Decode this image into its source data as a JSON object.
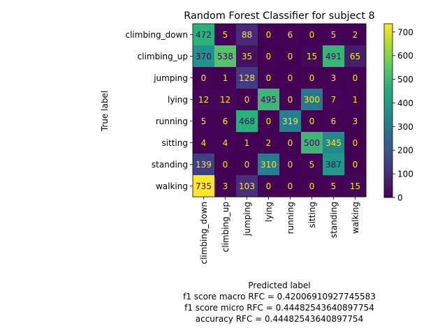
{
  "chart_data": {
    "type": "heatmap",
    "title": "Random Forest Classifier for subject 8",
    "xlabel": "Predicted label",
    "ylabel": "True label",
    "row_labels": [
      "climbing_down",
      "climbing_up",
      "jumping",
      "lying",
      "running",
      "sitting",
      "standing",
      "walking"
    ],
    "col_labels": [
      "climbing_down",
      "climbing_up",
      "jumping",
      "lying",
      "running",
      "sitting",
      "standing",
      "walking"
    ],
    "values": [
      [
        472,
        5,
        88,
        0,
        6,
        0,
        5,
        2
      ],
      [
        370,
        538,
        35,
        0,
        0,
        15,
        491,
        65
      ],
      [
        0,
        1,
        128,
        0,
        0,
        0,
        3,
        0
      ],
      [
        12,
        12,
        0,
        495,
        0,
        300,
        7,
        1
      ],
      [
        5,
        6,
        468,
        0,
        319,
        0,
        6,
        3
      ],
      [
        4,
        4,
        1,
        2,
        0,
        500,
        345,
        0
      ],
      [
        139,
        0,
        0,
        310,
        0,
        5,
        387,
        0
      ],
      [
        735,
        3,
        103,
        0,
        0,
        0,
        5,
        15
      ]
    ],
    "colormap": "viridis",
    "vmin": 0,
    "vmax": 735,
    "colorbar_ticks": [
      0,
      100,
      200,
      300,
      400,
      500,
      600,
      700
    ],
    "footer_lines": [
      "f1 score macro RFC = 0.42006910927745583",
      "f1 score micro RFC = 0.44482543640897754",
      "accuracy RFC = 0.44482543640897754"
    ]
  }
}
